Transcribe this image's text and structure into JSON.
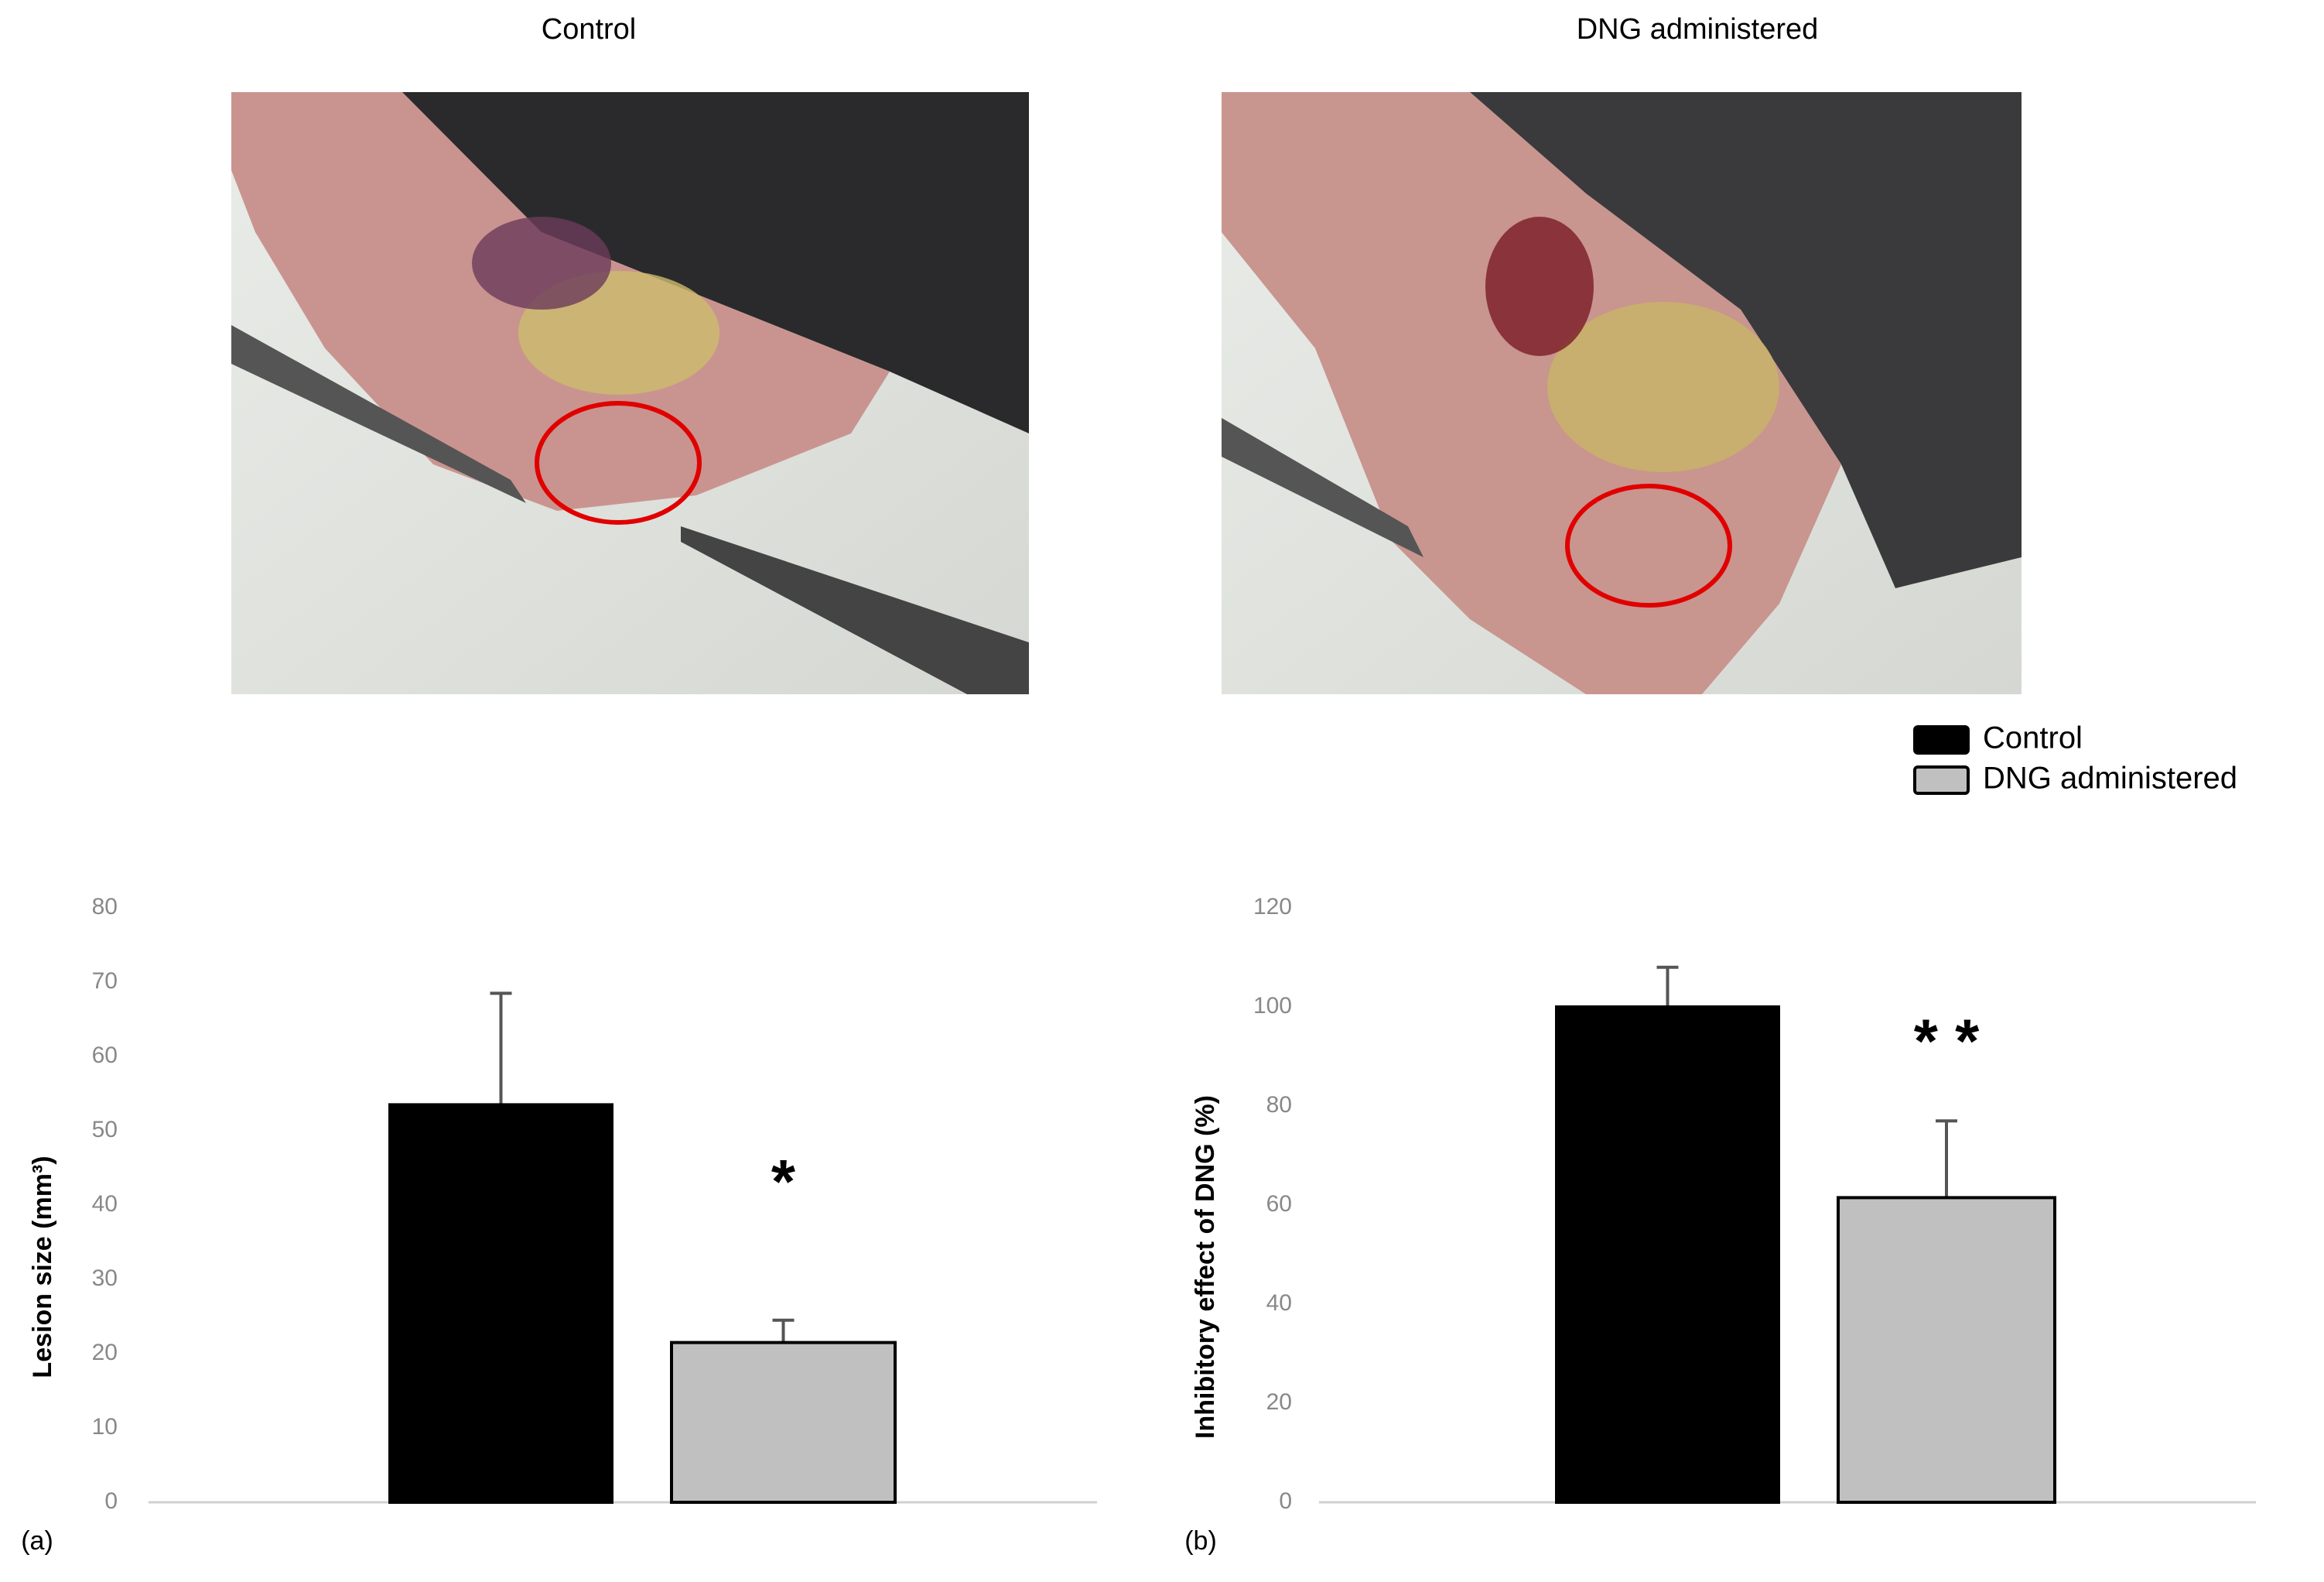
{
  "photos": [
    {
      "title": "Control"
    },
    {
      "title": "DNG administered"
    }
  ],
  "chart_data": [
    {
      "type": "bar",
      "panel_label": "(a)",
      "ylabel": "Lesion size (mm³)",
      "ylim": [
        0,
        80
      ],
      "yticks": [
        0,
        10,
        20,
        30,
        40,
        50,
        60,
        70,
        80
      ],
      "annotation": "*",
      "series": [
        {
          "color": "#000000",
          "values": [
            53.5
          ],
          "errors": [
            15
          ]
        },
        {
          "color": "#c0c0c0",
          "values": [
            21.5
          ],
          "errors": [
            3
          ]
        }
      ]
    },
    {
      "type": "bar",
      "panel_label": "(b)",
      "ylabel": "Inhibitory effect of DNG (%)",
      "ylim": [
        0,
        120
      ],
      "yticks": [
        0,
        20,
        40,
        60,
        80,
        100,
        120
      ],
      "annotation": "* *",
      "series": [
        {
          "name": "Control",
          "color": "#000000",
          "values": [
            100
          ],
          "errors": [
            8
          ]
        },
        {
          "name": "DNG administered",
          "color": "#c0c0c0",
          "values": [
            61.5
          ],
          "errors": [
            15.5
          ]
        }
      ]
    }
  ]
}
